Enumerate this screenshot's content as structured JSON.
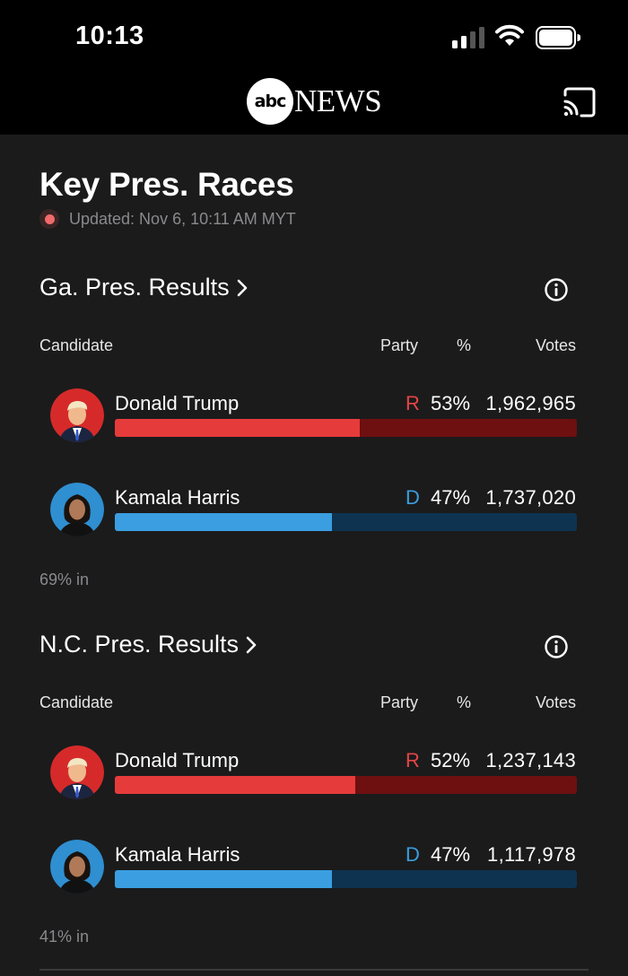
{
  "status_bar": {
    "time": "10:13"
  },
  "header": {
    "logo_abc": "abc",
    "logo_news": "NEWS"
  },
  "page": {
    "title": "Key Pres. Races",
    "updated": "Updated: Nov 6, 10:11 AM MYT"
  },
  "columns": {
    "candidate": "Candidate",
    "party": "Party",
    "pct": "%",
    "votes": "Votes"
  },
  "colors": {
    "rep_fill": "#e63b3b",
    "rep_track": "#6e0f10",
    "rep_text": "#e64545",
    "dem_fill": "#3a9ee0",
    "dem_track": "#0e3350",
    "dem_text": "#3a9ee0"
  },
  "races": [
    {
      "title": "Ga. Pres. Results",
      "reporting": "69% in",
      "candidates": [
        {
          "name": "Donald Trump",
          "party": "R",
          "pct": "53%",
          "votes": "1,962,965",
          "share": 0.53
        },
        {
          "name": "Kamala Harris",
          "party": "D",
          "pct": "47%",
          "votes": "1,737,020",
          "share": 0.47
        }
      ]
    },
    {
      "title": "N.C. Pres. Results",
      "reporting": "41% in",
      "candidates": [
        {
          "name": "Donald Trump",
          "party": "R",
          "pct": "52%",
          "votes": "1,237,143",
          "share": 0.52
        },
        {
          "name": "Kamala Harris",
          "party": "D",
          "pct": "47%",
          "votes": "1,117,978",
          "share": 0.47
        }
      ]
    }
  ]
}
